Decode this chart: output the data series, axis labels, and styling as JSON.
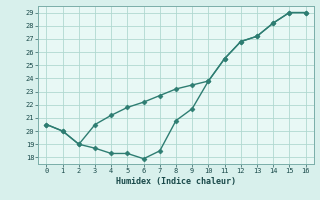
{
  "line1_x": [
    0,
    1,
    2,
    3,
    4,
    5,
    6,
    7,
    8,
    9,
    10,
    11,
    12,
    13,
    14,
    15,
    16
  ],
  "line1_y": [
    20.5,
    20.0,
    19.0,
    20.5,
    21.2,
    21.8,
    22.2,
    22.7,
    23.2,
    23.5,
    23.8,
    25.5,
    26.8,
    27.2,
    28.2,
    29.0,
    29.0
  ],
  "line2_x": [
    0,
    1,
    2,
    3,
    4,
    5,
    6,
    7,
    8,
    9,
    10,
    11,
    12,
    13,
    14,
    15,
    16
  ],
  "line2_y": [
    20.5,
    20.0,
    19.0,
    18.7,
    18.3,
    18.3,
    17.9,
    18.5,
    20.8,
    21.7,
    23.8,
    25.5,
    26.8,
    27.2,
    28.2,
    29.0,
    29.0
  ],
  "line_color": "#2e7d72",
  "bg_color": "#d8f0ec",
  "plot_bg_color": "#e8f8f5",
  "grid_color": "#b0d8d0",
  "xlabel": "Humidex (Indice chaleur)",
  "ylim": [
    17.5,
    29.5
  ],
  "xlim": [
    -0.5,
    16.5
  ],
  "yticks": [
    18,
    19,
    20,
    21,
    22,
    23,
    24,
    25,
    26,
    27,
    28,
    29
  ],
  "xticks": [
    0,
    1,
    2,
    3,
    4,
    5,
    6,
    7,
    8,
    9,
    10,
    11,
    12,
    13,
    14,
    15,
    16
  ],
  "marker_size": 2.5,
  "line_width": 1.0,
  "tick_color": "#2e6060",
  "label_color": "#1a4a4a"
}
